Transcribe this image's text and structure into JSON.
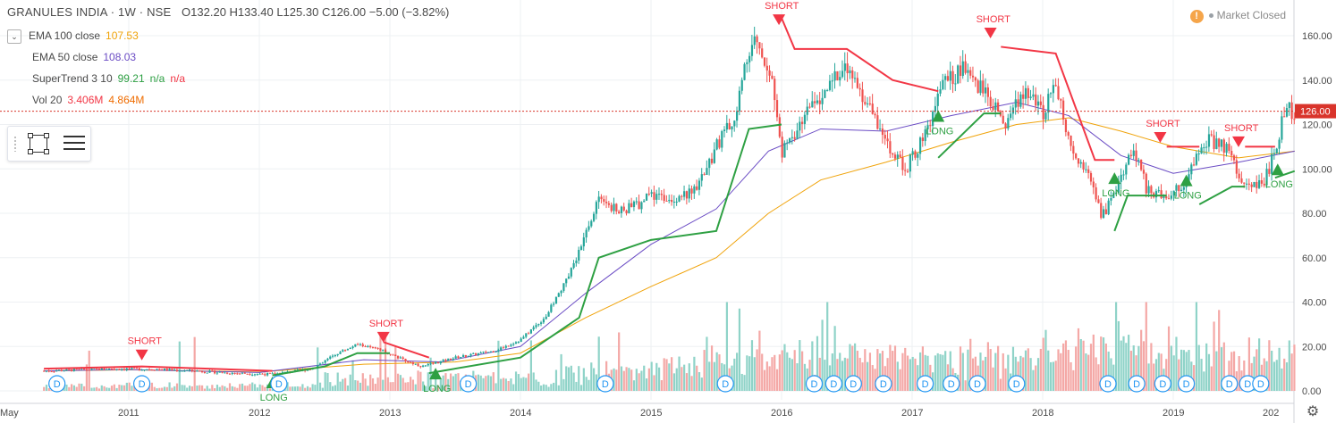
{
  "header": {
    "title": "GRANULES INDIA · 1W · NSE",
    "open": "O132.20",
    "high": "H133.40",
    "low": "L125.30",
    "close": "C126.00",
    "change": "−5.00 (−3.82%)"
  },
  "legend": {
    "toggle_icon": "chevron-down-icon",
    "ema100": {
      "name": "EMA 100 close",
      "value": "107.53",
      "color": "#f0a30a"
    },
    "ema50": {
      "name": "EMA 50 close",
      "value": "108.03",
      "color": "#6a4bc4"
    },
    "supertrend": {
      "name": "SuperTrend 3 10",
      "v1": "99.21",
      "v2": "n/a",
      "v3": "n/a",
      "up_color": "#2ea043",
      "down_color": "#f23645"
    },
    "vol": {
      "name": "Vol 20",
      "v1": "3.406M",
      "v2": "4.864M",
      "color": "#ef6c00"
    }
  },
  "market_status": "Market Closed",
  "last_price_label": "126.00",
  "chart_data": {
    "type": "candlestick",
    "title": "GRANULES INDIA · 1W · NSE",
    "x_ticks": [
      "May",
      "2011",
      "2012",
      "2013",
      "2014",
      "2015",
      "2016",
      "2017",
      "2018",
      "2019",
      "202"
    ],
    "y_ticks": [
      "160.00",
      "140.00",
      "120.00",
      "100.00",
      "80.00",
      "60.00",
      "40.00",
      "20.00",
      "0.00"
    ],
    "ylim": [
      0,
      172
    ],
    "xlim": [
      2010.35,
      2020.0
    ],
    "last_price": 126.0,
    "grid": true,
    "price_path": [
      [
        2010.35,
        9
      ],
      [
        2010.6,
        9.5
      ],
      [
        2010.9,
        10
      ],
      [
        2011.2,
        9.8
      ],
      [
        2011.5,
        9
      ],
      [
        2011.8,
        8
      ],
      [
        2012.1,
        7.5
      ],
      [
        2012.4,
        10
      ],
      [
        2012.6,
        17
      ],
      [
        2012.75,
        21
      ],
      [
        2012.95,
        18
      ],
      [
        2013.1,
        14
      ],
      [
        2013.25,
        11
      ],
      [
        2013.5,
        15
      ],
      [
        2013.8,
        18
      ],
      [
        2014.0,
        23
      ],
      [
        2014.2,
        34
      ],
      [
        2014.35,
        50
      ],
      [
        2014.5,
        70
      ],
      [
        2014.6,
        88
      ],
      [
        2014.75,
        80
      ],
      [
        2014.9,
        84
      ],
      [
        2015.0,
        88
      ],
      [
        2015.15,
        87
      ],
      [
        2015.35,
        90
      ],
      [
        2015.5,
        110
      ],
      [
        2015.65,
        125
      ],
      [
        2015.73,
        150
      ],
      [
        2015.8,
        158
      ],
      [
        2015.92,
        145
      ],
      [
        2016.0,
        108
      ],
      [
        2016.2,
        125
      ],
      [
        2016.35,
        138
      ],
      [
        2016.5,
        147
      ],
      [
        2016.65,
        130
      ],
      [
        2016.8,
        112
      ],
      [
        2016.95,
        100
      ],
      [
        2017.1,
        115
      ],
      [
        2017.25,
        140
      ],
      [
        2017.4,
        145
      ],
      [
        2017.55,
        135
      ],
      [
        2017.7,
        120
      ],
      [
        2017.85,
        135
      ],
      [
        2018.0,
        125
      ],
      [
        2018.1,
        140
      ],
      [
        2018.2,
        112
      ],
      [
        2018.35,
        98
      ],
      [
        2018.45,
        78
      ],
      [
        2018.55,
        88
      ],
      [
        2018.7,
        110
      ],
      [
        2018.8,
        90
      ],
      [
        2018.95,
        88
      ],
      [
        2019.1,
        95
      ],
      [
        2019.25,
        113
      ],
      [
        2019.4,
        110
      ],
      [
        2019.55,
        92
      ],
      [
        2019.7,
        95
      ],
      [
        2019.78,
        108
      ],
      [
        2019.85,
        127
      ],
      [
        2019.93,
        126
      ]
    ],
    "series": [
      {
        "name": "EMA 100 close",
        "color": "#f0a30a",
        "points": [
          [
            2010.35,
            9
          ],
          [
            2011.0,
            9.5
          ],
          [
            2012.0,
            8.5
          ],
          [
            2012.8,
            12
          ],
          [
            2013.5,
            13
          ],
          [
            2014.0,
            17
          ],
          [
            2014.5,
            33
          ],
          [
            2015.0,
            47
          ],
          [
            2015.5,
            60
          ],
          [
            2015.9,
            80
          ],
          [
            2016.3,
            95
          ],
          [
            2016.8,
            103
          ],
          [
            2017.3,
            112
          ],
          [
            2017.8,
            120
          ],
          [
            2018.2,
            123
          ],
          [
            2018.6,
            117
          ],
          [
            2019.0,
            110
          ],
          [
            2019.5,
            105
          ],
          [
            2019.93,
            108
          ]
        ]
      },
      {
        "name": "EMA 50 close",
        "color": "#6a4bc4",
        "points": [
          [
            2010.35,
            9
          ],
          [
            2011.0,
            9.6
          ],
          [
            2012.0,
            8.3
          ],
          [
            2012.8,
            14
          ],
          [
            2013.4,
            13
          ],
          [
            2014.0,
            20
          ],
          [
            2014.5,
            44
          ],
          [
            2015.0,
            66
          ],
          [
            2015.5,
            82
          ],
          [
            2015.9,
            108
          ],
          [
            2016.3,
            118
          ],
          [
            2016.8,
            117
          ],
          [
            2017.3,
            124
          ],
          [
            2017.8,
            130
          ],
          [
            2018.2,
            124
          ],
          [
            2018.6,
            106
          ],
          [
            2019.0,
            98
          ],
          [
            2019.5,
            103
          ],
          [
            2019.93,
            108
          ]
        ]
      },
      {
        "name": "SuperTrend 3 10",
        "segments": [
          {
            "dir": "down",
            "points": [
              [
                2010.35,
                10
              ],
              [
                2011.1,
                11
              ],
              [
                2012.1,
                9
              ]
            ]
          },
          {
            "dir": "up",
            "points": [
              [
                2012.1,
                7
              ],
              [
                2012.5,
                11
              ],
              [
                2012.75,
                17
              ],
              [
                2013.0,
                17
              ]
            ]
          },
          {
            "dir": "down",
            "points": [
              [
                2012.95,
                22
              ],
              [
                2013.3,
                15
              ]
            ]
          },
          {
            "dir": "up",
            "points": [
              [
                2013.3,
                8
              ],
              [
                2014.0,
                15
              ],
              [
                2014.45,
                33
              ],
              [
                2014.6,
                60
              ],
              [
                2015.0,
                68
              ],
              [
                2015.5,
                72
              ],
              [
                2015.75,
                118
              ],
              [
                2016.0,
                120
              ]
            ]
          },
          {
            "dir": "down",
            "points": [
              [
                2016.0,
                168
              ],
              [
                2016.1,
                154
              ],
              [
                2016.5,
                154
              ],
              [
                2016.85,
                140
              ],
              [
                2017.2,
                135
              ]
            ]
          },
          {
            "dir": "up",
            "points": [
              [
                2017.2,
                105
              ],
              [
                2017.55,
                125
              ],
              [
                2017.68,
                125
              ]
            ]
          },
          {
            "dir": "down",
            "points": [
              [
                2017.68,
                155
              ],
              [
                2018.1,
                152
              ],
              [
                2018.4,
                104
              ],
              [
                2018.55,
                104
              ]
            ]
          },
          {
            "dir": "up",
            "points": [
              [
                2018.55,
                72
              ],
              [
                2018.65,
                88
              ],
              [
                2018.95,
                88
              ]
            ]
          },
          {
            "dir": "down",
            "points": [
              [
                2018.95,
                110
              ],
              [
                2019.2,
                110
              ]
            ]
          },
          {
            "dir": "up",
            "points": [
              [
                2019.2,
                84
              ],
              [
                2019.45,
                92
              ],
              [
                2019.55,
                92
              ]
            ]
          },
          {
            "dir": "down",
            "points": [
              [
                2019.55,
                110
              ],
              [
                2019.78,
                110
              ]
            ]
          },
          {
            "dir": "up",
            "points": [
              [
                2019.78,
                96
              ],
              [
                2019.93,
                99
              ]
            ]
          }
        ]
      }
    ],
    "annotations": [
      {
        "label": "SHORT",
        "x": 2011.1,
        "y": 17
      },
      {
        "label": "SHORT",
        "x": 2012.95,
        "y": 25
      },
      {
        "label": "SHORT",
        "x": 2015.98,
        "y": 168
      },
      {
        "label": "SHORT",
        "x": 2017.6,
        "y": 162
      },
      {
        "label": "SHORT",
        "x": 2018.9,
        "y": 115
      },
      {
        "label": "SHORT",
        "x": 2019.5,
        "y": 113
      },
      {
        "label": "LONG",
        "x": 2012.1,
        "y": 2
      },
      {
        "label": "LONG",
        "x": 2013.35,
        "y": 6
      },
      {
        "label": "LONG",
        "x": 2017.2,
        "y": 122
      },
      {
        "label": "LONG",
        "x": 2018.55,
        "y": 94
      },
      {
        "label": "LONG",
        "x": 2019.1,
        "y": 93
      },
      {
        "label": "LONG",
        "x": 2019.8,
        "y": 98
      }
    ],
    "dividend_markers": {
      "label": "D",
      "x": [
        2010.45,
        2011.1,
        2012.15,
        2013.6,
        2014.65,
        2015.57,
        2016.25,
        2016.4,
        2016.55,
        2016.78,
        2017.1,
        2017.3,
        2017.5,
        2017.8,
        2018.5,
        2018.72,
        2018.92,
        2019.1,
        2019.43,
        2019.57,
        2019.67
      ]
    }
  }
}
